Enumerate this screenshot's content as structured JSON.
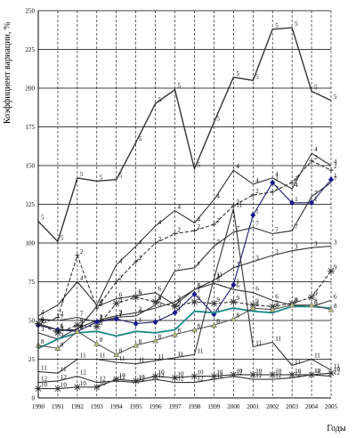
{
  "chart_data": {
    "type": "line",
    "title": "",
    "xlabel": "Годы",
    "ylabel": "Коэффициент вариации, %",
    "ylim": [
      0,
      250
    ],
    "yticks": [
      "0",
      "25",
      "50",
      "75",
      "100",
      "125",
      "150",
      "175",
      "200",
      "225",
      "250"
    ],
    "ytick_values": [
      0,
      25,
      50,
      75,
      100,
      125,
      150,
      175,
      200,
      225,
      250
    ],
    "grid": "horizontal solid lines, vertical dashed lines at each year",
    "legend": "none (series identified by number labels next to lines)",
    "categories": [
      "1990",
      "1991",
      "1992",
      "1993",
      "1994",
      "1995",
      "1996",
      "1997",
      "1998",
      "1999",
      "2000",
      "2001",
      "2002",
      "2003",
      "2004",
      "2005"
    ],
    "series": [
      {
        "name": "5",
        "style": "solid",
        "color": "#333333",
        "marker": "none",
        "values": [
          114,
          101,
          142,
          140,
          141,
          165,
          190,
          199,
          148,
          178,
          207,
          205,
          238,
          239,
          198,
          192
        ]
      },
      {
        "name": "3",
        "style": "solid",
        "color": "#333333",
        "marker": "none",
        "values": [
          42,
          38,
          45,
          50,
          53,
          55,
          58,
          62,
          70,
          76,
          84,
          88,
          92,
          95,
          97,
          98
        ]
      },
      {
        "name": "7",
        "style": "solid",
        "color": "#333333",
        "marker": "none",
        "values": [
          51,
          50,
          52,
          49,
          52,
          53,
          60,
          82,
          84,
          98,
          107,
          110,
          106,
          108,
          130,
          139
        ]
      },
      {
        "name": "2",
        "style": "dashed",
        "color": "#333333",
        "marker": "plus",
        "values": [
          47,
          52,
          92,
          58,
          75,
          88,
          100,
          106,
          108,
          112,
          124,
          131,
          133,
          139,
          153,
          147
        ]
      },
      {
        "name": "4",
        "style": "solid",
        "color": "#333333",
        "marker": "none",
        "values": [
          53,
          60,
          75,
          60,
          86,
          98,
          111,
          121,
          113,
          128,
          147,
          138,
          142,
          135,
          158,
          150
        ]
      },
      {
        "name": "1",
        "style": "solid",
        "color": "#1a1a6e",
        "marker": "diamond",
        "values": [
          47,
          44,
          43,
          49,
          51,
          48,
          49,
          55,
          67,
          54,
          73,
          118,
          139,
          126,
          126,
          141
        ]
      },
      {
        "name": "6",
        "style": "solid",
        "color": "#333333",
        "marker": "none",
        "values": [
          48,
          44,
          44,
          59,
          64,
          66,
          68,
          60,
          70,
          74,
          70,
          68,
          63,
          60,
          59,
          63
        ]
      },
      {
        "name": "9",
        "style": "dashed",
        "color": "#333333",
        "marker": "asterisk",
        "values": [
          48,
          42,
          47,
          46,
          61,
          65,
          62,
          59,
          62,
          61,
          62,
          60,
          59,
          61,
          65,
          82
        ]
      },
      {
        "name": "teal",
        "style": "solid",
        "color": "#1e8a8a",
        "marker": "none",
        "values": [
          32,
          38,
          42,
          43,
          40,
          43,
          42,
          44,
          56,
          55,
          58,
          56,
          55,
          59,
          59,
          58
        ]
      },
      {
        "name": "8",
        "style": "solid",
        "color": "#555555",
        "marker": "triangle",
        "values": [
          34,
          32,
          43,
          35,
          28,
          34,
          37,
          41,
          44,
          47,
          51,
          58,
          57,
          60,
          60,
          57
        ]
      },
      {
        "name": "11",
        "style": "solid",
        "color": "#333333",
        "marker": "none",
        "values": [
          17,
          16,
          25,
          25,
          23,
          22,
          24,
          26,
          28,
          77,
          122,
          33,
          36,
          21,
          25,
          18
        ]
      },
      {
        "name": "10",
        "style": "solid",
        "color": "#333333",
        "marker": "asterisk",
        "values": [
          6,
          6,
          7,
          7,
          12,
          11,
          14,
          13,
          14,
          14,
          15,
          15,
          15,
          15,
          15,
          16
        ]
      },
      {
        "name": "12",
        "style": "solid",
        "color": "#333333",
        "marker": "none",
        "values": [
          10,
          11,
          14,
          10,
          11,
          10,
          12,
          10,
          10,
          12,
          14,
          12,
          12,
          13,
          15,
          14
        ]
      }
    ]
  }
}
